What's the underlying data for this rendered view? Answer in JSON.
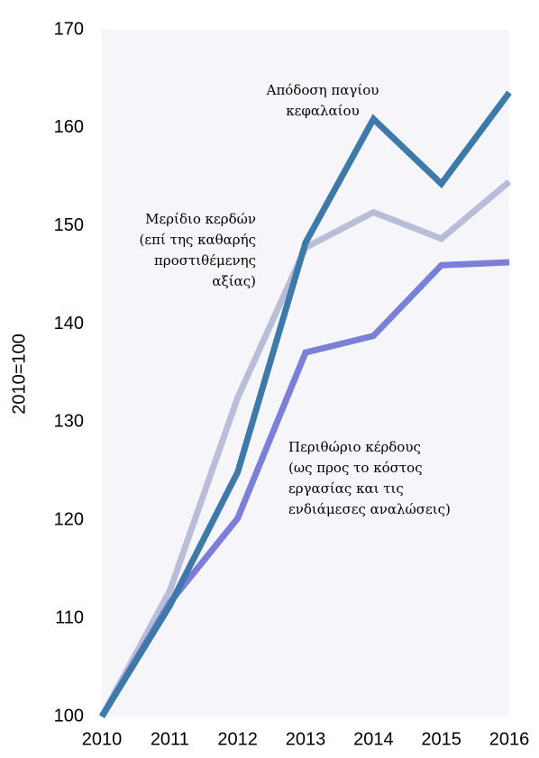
{
  "chart_data": {
    "type": "line",
    "y_label": "2010=100",
    "categories": [
      "2010",
      "2011",
      "2012",
      "2013",
      "2014",
      "2015",
      "2016"
    ],
    "series": [
      {
        "name": "Μερίδιο κερδών (επί της καθαρής προστιθέμενης αξίας)",
        "color": "#b9bdd7",
        "values": [
          100,
          112.8,
          132.5,
          147.8,
          151.4,
          148.7,
          154.5
        ]
      },
      {
        "name": "Περιθώριο κέρδους (ως προς το κόστος εργασίας και τις ενδιάμεσες αναλώσεις)",
        "color": "#7b7fd8",
        "values": [
          100,
          111.6,
          120.2,
          137.1,
          138.8,
          146,
          146.3
        ]
      },
      {
        "name": "Απόδοση παγίου κεφαλαίου",
        "color": "#3d7aa9",
        "values": [
          100,
          111.3,
          124.9,
          148.3,
          160.9,
          154.3,
          163.6
        ]
      }
    ],
    "annotations": [
      {
        "series": 2,
        "lines": [
          "Απόδοση παγίου",
          "κεφαλαίου"
        ]
      },
      {
        "series": 0,
        "lines": [
          "Μερίδιο κερδών",
          "(επί της καθαρής",
          "προστιθέμενης",
          "αξίας)"
        ]
      },
      {
        "series": 1,
        "lines": [
          "Περιθώριο κέρδους",
          "(ως προς το κόστος",
          "εργασίας και τις",
          "ενδιάμεσες αναλώσεις)"
        ]
      }
    ],
    "ylim": [
      100,
      170
    ],
    "yticks": [
      100,
      110,
      120,
      130,
      140,
      150,
      160,
      170
    ]
  }
}
